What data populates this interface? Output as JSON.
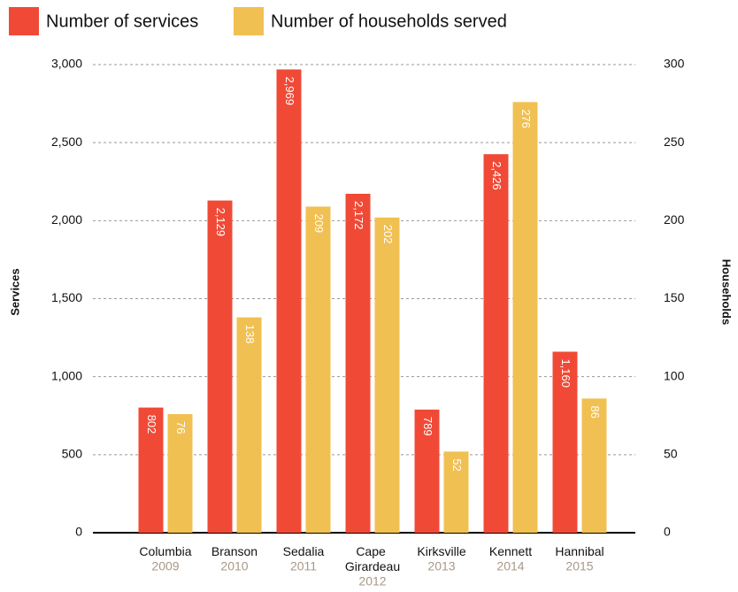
{
  "chart_data": {
    "type": "bar",
    "categories": [
      "Columbia",
      "Branson",
      "Sedalia",
      "Cape Girardeau",
      "Kirksville",
      "Kennett",
      "Hannibal"
    ],
    "category_sublabels": [
      "2009",
      "2010",
      "2011",
      "2012",
      "2013",
      "2014",
      "2015"
    ],
    "series": [
      {
        "name": "Number of services",
        "color": "#f04a37",
        "axis": "y",
        "values": [
          802,
          2129,
          2969,
          2172,
          789,
          2426,
          1160
        ],
        "value_labels": [
          "802",
          "2,129",
          "2,969",
          "2,172",
          "789",
          "2,426",
          "1,160"
        ]
      },
      {
        "name": "Number of households served",
        "color": "#f1c052",
        "axis": "y2",
        "values": [
          76,
          138,
          209,
          202,
          52,
          276,
          86
        ],
        "value_labels": [
          "76",
          "138",
          "209",
          "202",
          "52",
          "276",
          "86"
        ]
      }
    ],
    "ylabel": "Services",
    "y2label": "Households",
    "ylim": [
      0,
      3000
    ],
    "yticks": [
      0,
      500,
      {
        "value": 1000,
        "label": "1,000"
      },
      {
        "value": 1500,
        "label": "1,500"
      },
      {
        "value": 2000,
        "label": "2,000"
      },
      {
        "value": 2500,
        "label": "2,500"
      },
      {
        "value": 3000,
        "label": "3,000"
      }
    ],
    "y2lim": [
      0,
      300
    ],
    "y2ticks": [
      0,
      50,
      100,
      150,
      200,
      250,
      300
    ],
    "grid": true,
    "legend": "top-left"
  }
}
